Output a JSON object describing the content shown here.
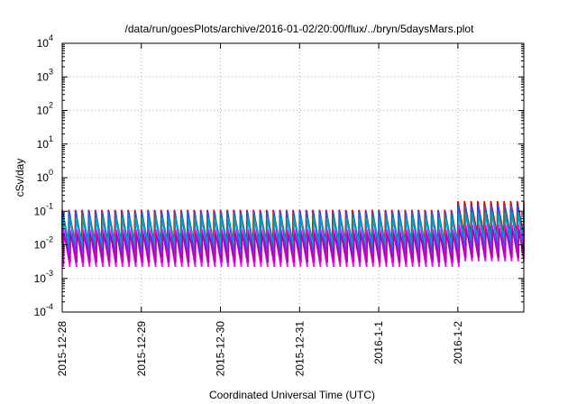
{
  "chart_data": {
    "type": "line",
    "title": "/data/run/goesPlots/archive/2016-01-02/20:00/flux/../bryn/5daysMars.plot",
    "xlabel": "Coordinated Universal Time (UTC)",
    "ylabel": "cSv/day",
    "yscale": "log",
    "ylim": [
      0.0001,
      10000
    ],
    "y_ticks": [
      {
        "base": "10",
        "exp": "-4"
      },
      {
        "base": "10",
        "exp": "-3"
      },
      {
        "base": "10",
        "exp": "-2"
      },
      {
        "base": "10",
        "exp": "-1"
      },
      {
        "base": "10",
        "exp": "0"
      },
      {
        "base": "10",
        "exp": "1"
      },
      {
        "base": "10",
        "exp": "2"
      },
      {
        "base": "10",
        "exp": "3"
      },
      {
        "base": "10",
        "exp": "4"
      }
    ],
    "xlim": [
      "2015-12-28T00:00",
      "2016-01-02T20:00"
    ],
    "x_ticks": [
      "2015-12-28",
      "2015-12-29",
      "2015-12-30",
      "2015-12-31",
      "2016-1-1",
      "2016-1-2"
    ],
    "grid": true,
    "cycles_per_day": 12,
    "series": [
      {
        "color": "#d00000",
        "peak": 0.11,
        "trough": 0.012,
        "late_peak": 0.2,
        "late_trough": 0.02
      },
      {
        "color": "#00a000",
        "peak": 0.085,
        "trough": 0.008,
        "late_peak": 0.11,
        "late_trough": 0.012
      },
      {
        "color": "#3050ff",
        "peak": 0.1,
        "trough": 0.004,
        "late_peak": 0.15,
        "late_trough": 0.006
      },
      {
        "color": "#00a0c0",
        "peak": 0.065,
        "trough": 0.009,
        "late_peak": 0.09,
        "late_trough": 0.013
      },
      {
        "color": "#ff00ff",
        "peak": 0.028,
        "trough": 0.0022,
        "late_peak": 0.04,
        "late_trough": 0.0032
      },
      {
        "color": "#b000b0",
        "peak": 0.022,
        "trough": 0.003,
        "late_peak": 0.03,
        "late_trough": 0.004
      }
    ]
  }
}
